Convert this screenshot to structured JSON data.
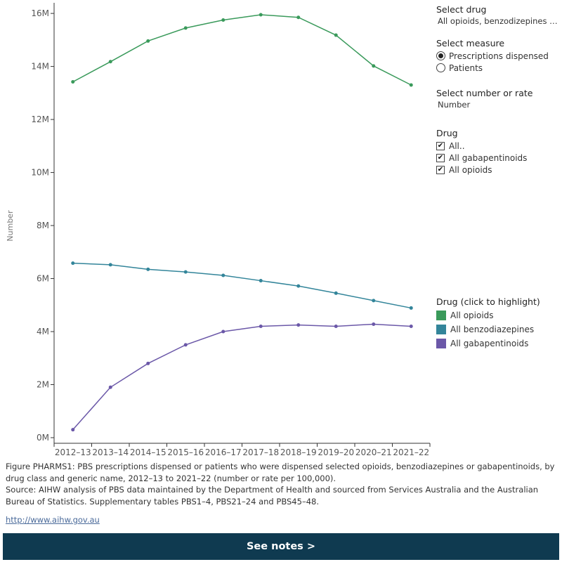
{
  "controls": {
    "select_drug": {
      "title": "Select drug",
      "value": "All opioids, benzodizepines a.."
    },
    "select_measure": {
      "title": "Select measure",
      "options": [
        "Prescriptions dispensed",
        "Patients"
      ],
      "selected": 0
    },
    "select_number_or_rate": {
      "title": "Select number or rate",
      "value": "Number"
    },
    "drug_filter": {
      "title": "Drug",
      "items": [
        "All..",
        "All gabapentinoids",
        "All opioids"
      ]
    },
    "legend": {
      "title": "Drug (click to highlight)",
      "items": [
        {
          "label": "All opioids",
          "color": "#3a9a5b"
        },
        {
          "label": "All benzodiazepines",
          "color": "#33859a"
        },
        {
          "label": "All gabapentinoids",
          "color": "#6b58a8"
        }
      ]
    }
  },
  "chart_data": {
    "type": "line",
    "categories": [
      "2012–13",
      "2013–14",
      "2014–15",
      "2015–16",
      "2016–17",
      "2017–18",
      "2018–19",
      "2019–20",
      "2020–21",
      "2021–22"
    ],
    "ylabel": "Number",
    "yticks": [
      "0M",
      "2M",
      "4M",
      "6M",
      "8M",
      "10M",
      "12M",
      "14M",
      "16M"
    ],
    "ylim": [
      0,
      16400000
    ],
    "grid": false,
    "series": [
      {
        "name": "All opioids",
        "color": "#3a9a5b",
        "values": [
          13420000,
          14180000,
          14960000,
          15450000,
          15750000,
          15950000,
          15850000,
          15180000,
          14020000,
          13300000
        ]
      },
      {
        "name": "All benzodiazepines",
        "color": "#33859a",
        "values": [
          6580000,
          6520000,
          6350000,
          6250000,
          6120000,
          5920000,
          5720000,
          5450000,
          5170000,
          4890000
        ]
      },
      {
        "name": "All gabapentinoids",
        "color": "#6b58a8",
        "values": [
          300000,
          1900000,
          2800000,
          3500000,
          4000000,
          4200000,
          4250000,
          4200000,
          4280000,
          4200000
        ]
      }
    ]
  },
  "caption": {
    "figure": "Figure PHARMS1: PBS prescriptions dispensed or patients who were dispensed selected opioids, benzodiazepines or gabapentinoids, by drug class and generic name, 2012–13 to 2021–22 (number or rate per 100,000).",
    "source": "Source: AIHW analysis of PBS data maintained by the Department of Health and sourced from Services Australia and the Australian Bureau of Statistics. Supplementary tables PBS1–4, PBS21–24 and PBS45–48."
  },
  "link": "http://www.aihw.gov.au",
  "notes_button": "See notes >"
}
